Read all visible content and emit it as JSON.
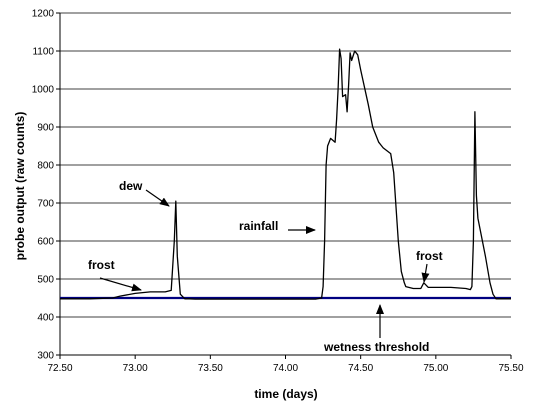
{
  "chart_data": {
    "type": "line",
    "title": "",
    "xlabel": "time (days)",
    "ylabel": "probe output (raw counts)",
    "xlim": [
      72.5,
      75.5
    ],
    "ylim": [
      300,
      1200
    ],
    "x_ticks": [
      72.5,
      73.0,
      73.5,
      74.0,
      74.5,
      75.0,
      75.5
    ],
    "x_tick_labels": [
      "72.50",
      "73.00",
      "73.50",
      "74.00",
      "74.50",
      "75.00",
      "75.50"
    ],
    "y_ticks": [
      300,
      400,
      500,
      600,
      700,
      800,
      900,
      1000,
      1100,
      1200
    ],
    "y_tick_labels": [
      "300",
      "400",
      "500",
      "600",
      "700",
      "800",
      "900",
      "1000",
      "1100",
      "1200"
    ],
    "grid": "horizontal",
    "legend": "none",
    "colors": {
      "probe": "#000000",
      "threshold": "#000080",
      "grid": "#000000"
    },
    "series": [
      {
        "x": [
          72.5,
          72.7,
          72.85,
          72.9,
          73.0,
          73.1,
          73.2,
          73.24,
          73.26,
          73.27,
          73.28,
          73.3,
          73.33,
          73.36,
          73.4,
          73.6,
          73.8,
          74.0,
          74.2,
          74.24,
          74.25,
          74.26,
          74.27,
          74.28,
          74.3,
          74.33,
          74.34,
          74.35,
          74.36,
          74.37,
          74.38,
          74.4,
          74.41,
          74.42,
          74.43,
          74.44,
          74.46,
          74.48,
          74.5,
          74.55,
          74.58,
          74.62,
          74.65,
          74.7,
          74.72,
          74.75,
          74.77,
          74.79,
          74.8,
          74.85,
          74.9,
          74.92,
          74.95,
          75.0,
          75.1,
          75.2,
          75.23,
          75.24,
          75.25,
          75.26,
          75.27,
          75.28,
          75.3,
          75.33,
          75.36,
          75.38,
          75.4,
          75.45,
          75.5
        ],
        "y": [
          448,
          448,
          450,
          455,
          462,
          466,
          466,
          470,
          600,
          705,
          560,
          460,
          448,
          448,
          447,
          447,
          447,
          447,
          447,
          450,
          480,
          600,
          800,
          850,
          870,
          860,
          920,
          1000,
          1105,
          1080,
          980,
          985,
          940,
          1010,
          1095,
          1075,
          1100,
          1090,
          1050,
          960,
          900,
          860,
          845,
          830,
          780,
          600,
          520,
          490,
          480,
          475,
          475,
          490,
          478,
          478,
          478,
          475,
          472,
          480,
          600,
          940,
          720,
          660,
          620,
          560,
          490,
          460,
          448,
          448,
          448
        ]
      },
      {
        "name": "wetness threshold",
        "x": [
          72.5,
          75.5
        ],
        "y": [
          450,
          450
        ]
      }
    ],
    "annotations": [
      {
        "text": "dew",
        "x": 72.93,
        "y": 735
      },
      {
        "text": "frost",
        "x": 72.67,
        "y": 570
      },
      {
        "text": "rainfall",
        "x": 73.85,
        "y": 625
      },
      {
        "text": "frost",
        "x": 74.93,
        "y": 530
      },
      {
        "text": "wetness threshold",
        "x": 74.66,
        "y": 320
      }
    ]
  }
}
